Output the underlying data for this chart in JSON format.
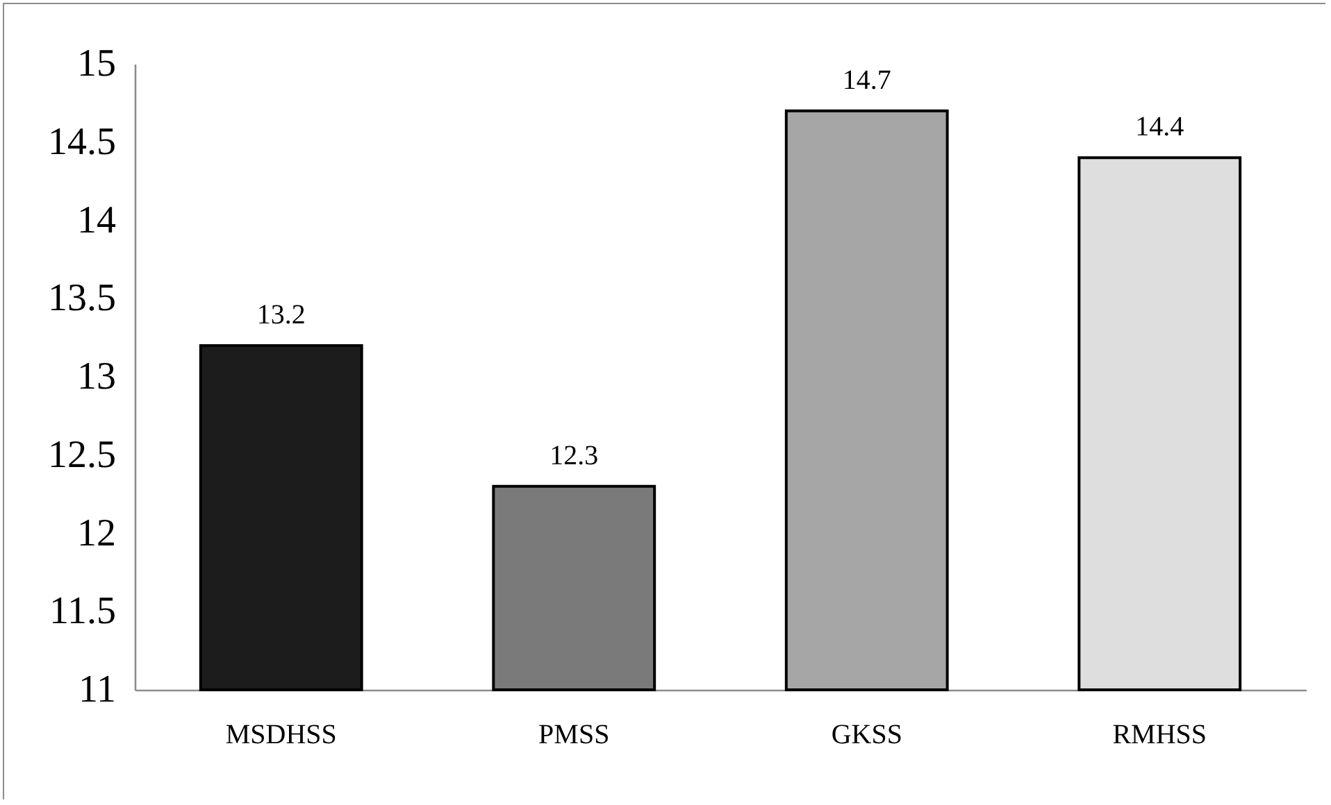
{
  "chart_data": {
    "type": "bar",
    "categories": [
      "MSDHSS",
      "PMSS",
      "GKSS",
      "RMHSS"
    ],
    "values": [
      13.2,
      12.3,
      14.7,
      14.4
    ],
    "colors": [
      "#1c1c1c",
      "#7a7a7a",
      "#a6a6a6",
      "#dedede"
    ],
    "ylim": [
      11,
      15
    ],
    "yticks": [
      11,
      11.5,
      12,
      12.5,
      13,
      13.5,
      14,
      14.5,
      15
    ],
    "data_labels": true
  }
}
